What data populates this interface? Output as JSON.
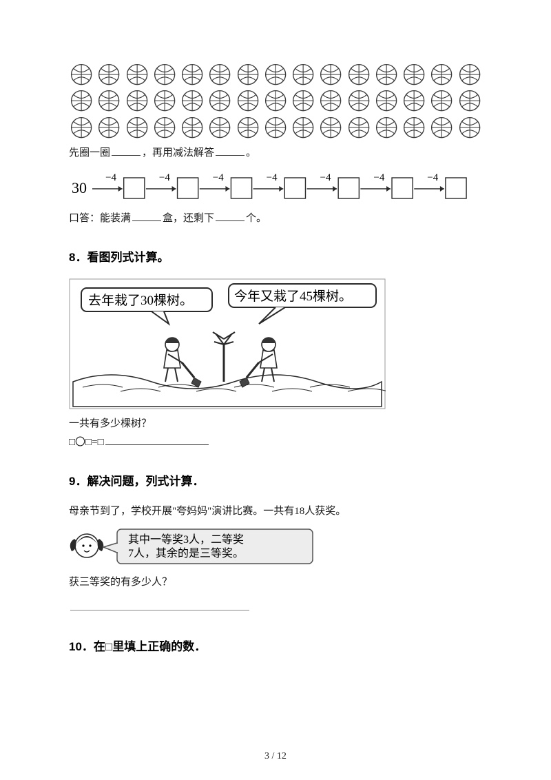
{
  "colors": {
    "text": "#000000",
    "faint_text": "#1a1a1a",
    "line": "#333333",
    "ball_stroke": "#3a3a3a",
    "box_stroke": "#2a2a2a",
    "bubble_stroke": "#555555",
    "bubble_fill": "#ededed",
    "bg": "#ffffff"
  },
  "q7": {
    "ball_rows": 3,
    "ball_cols": 15,
    "line1_a": "先圈一圈",
    "line1_b": "，再用减法解答",
    "line1_c": "。",
    "chain": {
      "start": 30,
      "step_label": "−4",
      "boxes": 7
    },
    "line2_a": "口答：能装满",
    "line2_b": "盒，还剩下",
    "line2_c": "个。"
  },
  "q8": {
    "num": "8．",
    "title": "看图列式计算。",
    "bubble_left": "去年栽了30棵树。",
    "bubble_right": "今年又栽了45棵树。",
    "q_text": "一共有多少棵树？",
    "expr": "□〇□=□"
  },
  "q9": {
    "num": "9．",
    "title": "解决问题，列式计算．",
    "intro": "母亲节到了，学校开展\"夸妈妈\"演讲比赛。一共有18人获奖。",
    "bubble_l1": "其中一等奖3人，二等奖",
    "bubble_l2": "7人，其余的是三等奖。",
    "q_text": "获三等奖的有多少人？"
  },
  "q10": {
    "num": "10．",
    "title": "在□里填上正确的数．"
  },
  "footer": "3 / 12"
}
